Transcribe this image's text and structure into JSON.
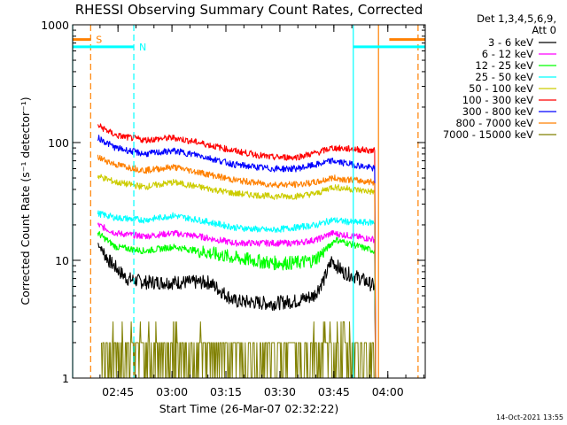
{
  "chart_data": {
    "type": "line",
    "title": "RHESSI Observing Summary Count Rates, Corrected",
    "xlabel": "Start Time (26-Mar-07 02:32:22)",
    "ylabel": "Corrected Count Rate (s⁻¹ detector⁻¹)",
    "y_scale": "log",
    "ylim": [
      1,
      1000
    ],
    "xlim_minutes_after_0232": [
      0,
      98
    ],
    "x_ticks": [
      {
        "label": "02:45",
        "minute": 12.6
      },
      {
        "label": "03:00",
        "minute": 27.6
      },
      {
        "label": "03:15",
        "minute": 42.6
      },
      {
        "label": "03:30",
        "minute": 57.6
      },
      {
        "label": "03:45",
        "minute": 72.6
      },
      {
        "label": "04:00",
        "minute": 87.6
      }
    ],
    "y_ticks": [
      {
        "label": "1",
        "value": 1
      },
      {
        "label": "10",
        "value": 10
      },
      {
        "label": "100",
        "value": 100
      },
      {
        "label": "1000",
        "value": 1000
      }
    ],
    "legend_header": [
      "Det 1,3,4,5,6,9,",
      "Att 0"
    ],
    "legend_placement": "right",
    "series": [
      {
        "name": "3 - 6 keV",
        "color": "#000000",
        "x": [
          7,
          10,
          15,
          20,
          30,
          38,
          45,
          55,
          62,
          67,
          70,
          72,
          75,
          80,
          84
        ],
        "values": [
          14,
          10,
          7,
          6.5,
          6.5,
          6.5,
          4.5,
          4.3,
          4.5,
          5,
          7,
          10,
          8,
          7,
          6
        ]
      },
      {
        "name": "6 - 12 keV",
        "color": "#ff00ff",
        "x": [
          7,
          12,
          20,
          28,
          35,
          45,
          55,
          62,
          68,
          72,
          78,
          84
        ],
        "values": [
          20,
          17,
          16,
          17,
          16,
          14,
          14,
          14,
          15,
          17,
          16,
          15
        ]
      },
      {
        "name": "12 - 25 keV",
        "color": "#00ff00",
        "x": [
          7,
          12,
          20,
          28,
          35,
          45,
          55,
          62,
          67,
          70,
          73,
          80,
          84
        ],
        "values": [
          17,
          13,
          12,
          13,
          12,
          10.5,
          9.5,
          9.5,
          10,
          12,
          15,
          13,
          12
        ]
      },
      {
        "name": "25 - 50 keV",
        "color": "#00ffff",
        "x": [
          7,
          12,
          20,
          28,
          35,
          45,
          55,
          62,
          68,
          72,
          78,
          84
        ],
        "values": [
          25,
          23,
          22,
          24,
          22,
          19,
          18,
          19,
          20,
          22,
          21,
          21
        ]
      },
      {
        "name": "50 - 100 keV",
        "color": "#cccc00",
        "x": [
          7,
          12,
          20,
          28,
          35,
          45,
          55,
          62,
          68,
          72,
          78,
          84
        ],
        "values": [
          52,
          46,
          42,
          46,
          42,
          37,
          35,
          35,
          37,
          42,
          40,
          38
        ]
      },
      {
        "name": "100 - 300 keV",
        "color": "#ff0000",
        "x": [
          7,
          12,
          20,
          28,
          35,
          45,
          55,
          62,
          68,
          72,
          78,
          84
        ],
        "values": [
          140,
          115,
          105,
          110,
          100,
          85,
          75,
          75,
          82,
          90,
          88,
          85
        ]
      },
      {
        "name": "300 - 800 keV",
        "color": "#0000ff",
        "x": [
          7,
          12,
          20,
          28,
          35,
          45,
          55,
          62,
          68,
          72,
          78,
          84
        ],
        "values": [
          110,
          90,
          80,
          85,
          78,
          65,
          60,
          60,
          65,
          70,
          65,
          60
        ]
      },
      {
        "name": "800 - 7000 keV",
        "color": "#ff8000",
        "x": [
          7,
          12,
          20,
          28,
          35,
          45,
          55,
          62,
          68,
          72,
          78,
          84
        ],
        "values": [
          75,
          65,
          58,
          62,
          56,
          48,
          44,
          44,
          46,
          50,
          48,
          46
        ]
      },
      {
        "name": "7000 - 15000 keV",
        "color": "#808000",
        "x": [
          8,
          84
        ],
        "values": [
          2,
          2
        ],
        "peak": 3
      }
    ],
    "flags": [
      {
        "label": "S",
        "color": "#ff8000",
        "x_start": 0,
        "x_end": 5,
        "value": 750
      },
      {
        "label": "N",
        "color": "#00ffff",
        "x_start": 0,
        "x_end": 17,
        "value": 650
      },
      {
        "label": "",
        "color": "#00ffff",
        "x_start": 78,
        "x_end": 98,
        "value": 650
      },
      {
        "label": "",
        "color": "#ff8000",
        "x_start": 88,
        "x_end": 98,
        "value": 750
      }
    ],
    "vlines": [
      {
        "color": "#00ffff",
        "minute": 0,
        "style": "solid"
      },
      {
        "color": "#ff8000",
        "minute": 5,
        "style": "dashed"
      },
      {
        "color": "#00ffff",
        "minute": 17,
        "style": "dashed"
      },
      {
        "color": "#00ffff",
        "minute": 78,
        "style": "solid"
      },
      {
        "color": "#ff8000",
        "minute": 85,
        "style": "solid"
      },
      {
        "color": "#ff8000",
        "minute": 96,
        "style": "dashed"
      }
    ],
    "footer": "14-Oct-2021 13:55"
  }
}
